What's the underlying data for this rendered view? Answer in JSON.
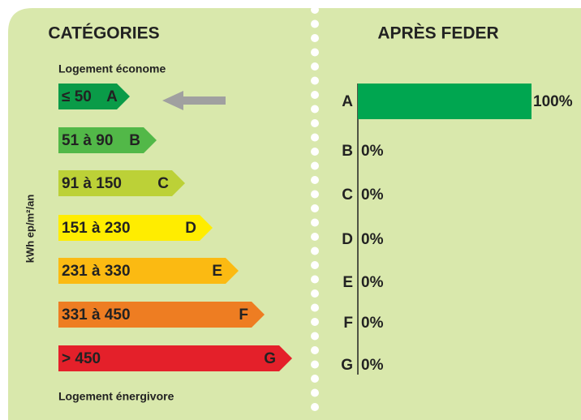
{
  "legend_panel": {
    "title": "CATÉGORIES",
    "top_note": "Logement économe",
    "bottom_note": "Logement énergivore",
    "axis_label": "kWh ep/m²/an",
    "classes": [
      {
        "range": "≤ 50",
        "letter": "A",
        "color": "#0a9b48"
      },
      {
        "range": "51 à 90",
        "letter": "B",
        "color": "#52b848"
      },
      {
        "range": "91 à 150",
        "letter": "C",
        "color": "#bcd137"
      },
      {
        "range": "151 à 230",
        "letter": "D",
        "color": "#ffed00"
      },
      {
        "range": "231 à 330",
        "letter": "E",
        "color": "#fbba12"
      },
      {
        "range": "331 à 450",
        "letter": "F",
        "color": "#ee7d22"
      },
      {
        "range": "> 450",
        "letter": "G",
        "color": "#e4202a"
      }
    ]
  },
  "chart_data": {
    "type": "bar",
    "orientation": "horizontal",
    "title": "APRÈS FEDER",
    "categories": [
      "A",
      "B",
      "C",
      "D",
      "E",
      "F",
      "G"
    ],
    "values": [
      100,
      0,
      0,
      0,
      0,
      0,
      0
    ],
    "value_labels": [
      "100%",
      "0%",
      "0%",
      "0%",
      "0%",
      "0%",
      "0%"
    ],
    "color": "#00a650",
    "xlim": [
      0,
      100
    ]
  }
}
